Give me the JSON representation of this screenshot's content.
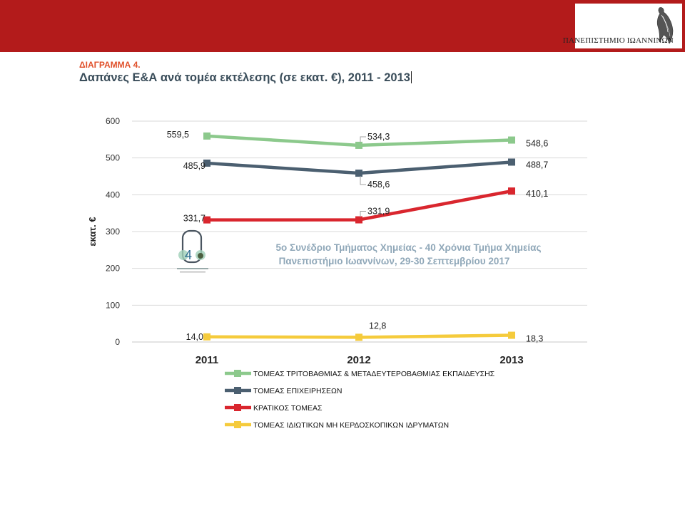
{
  "header": {
    "university": "ΠΑΝΕΠΙΣΤΗΜΙΟ ΙΩΑΝΝΙΝΩΝ",
    "banner_color": "#b31b1b"
  },
  "slide": {
    "heading": "ΔΙΑΓΡΑΜΜΑ 4.",
    "title": "Δαπάνες Ε&Α ανά τομέα εκτέλεσης (σε εκατ. €), 2011 - 2013"
  },
  "watermark": {
    "line1": "5ο Συνέδριο Τμήματος Χημείας - 40 Χρόνια Τμήμα Χημείας",
    "line2": "Πανεπιστήμιο Ιωαννίνων,  29-30 Σεπτεμβρίου 2017"
  },
  "chart_data": {
    "type": "line",
    "title": "",
    "xlabel": "",
    "ylabel": "εκατ. €",
    "x": [
      "2011",
      "2012",
      "2013"
    ],
    "ylim": [
      0,
      600
    ],
    "yticks": [
      0,
      100,
      200,
      300,
      400,
      500,
      600
    ],
    "grid": true,
    "legend_position": "bottom",
    "series": [
      {
        "name": "ΤΟΜΕΑΣ ΤΡΙΤΟΒΑΘΜΙΑΣ & ΜΕΤΑΔΕΥΤΕΡΟΒΑΘΜΙΑΣ ΕΚΠΑΙΔΕΥΣΗΣ",
        "values": [
          559.5,
          534.3,
          548.6
        ],
        "labels": [
          "559,5",
          "534,3",
          "548,6"
        ],
        "color": "#8cc98c"
      },
      {
        "name": "ΤΟΜΕΑΣ ΕΠΙΧΕΙΡΗΣΕΩΝ",
        "values": [
          485.9,
          458.6,
          488.7
        ],
        "labels": [
          "485,9",
          "458,6",
          "488,7"
        ],
        "color": "#4b5f70"
      },
      {
        "name": "ΚΡΑΤΙΚΟΣ ΤΟΜΕΑΣ",
        "values": [
          331.7,
          331.9,
          410.1
        ],
        "labels": [
          "331,7",
          "331,9",
          "410,1"
        ],
        "color": "#d9262e"
      },
      {
        "name": "ΤΟΜΕΑΣ ΙΔΙΩΤΙΚΩΝ ΜΗ ΚΕΡΔΟΣΚΟΠΙΚΩΝ ΙΔΡΥΜΑΤΩΝ",
        "values": [
          14.0,
          12.8,
          18.3
        ],
        "labels": [
          "14,0",
          "12,8",
          "18,3"
        ],
        "color": "#f5cb3c"
      }
    ]
  }
}
